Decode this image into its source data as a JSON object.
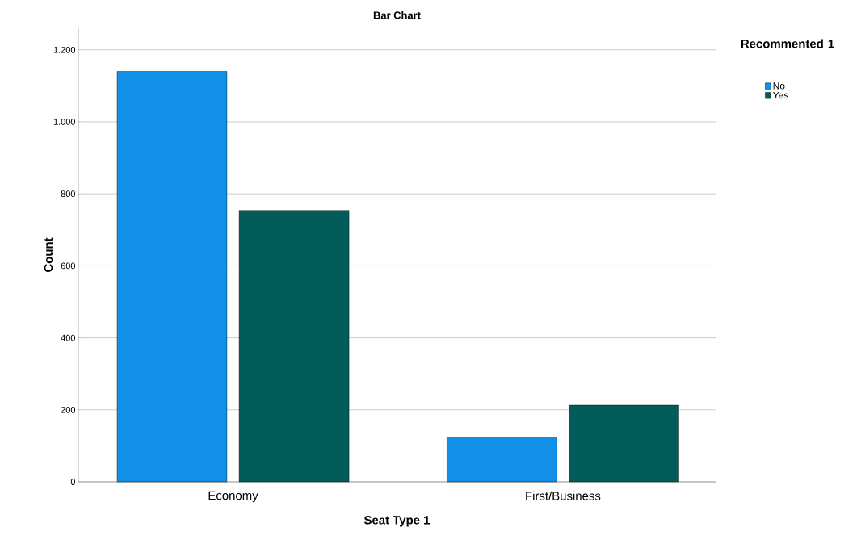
{
  "chart_data": {
    "type": "bar",
    "title": "Bar Chart",
    "xlabel": "Seat Type 1",
    "ylabel": "Count",
    "legend_title": "Recommented 1",
    "categories": [
      "Economy",
      "First/Business"
    ],
    "series": [
      {
        "name": "No",
        "color": "#1290e8",
        "values": [
          1140,
          123
        ]
      },
      {
        "name": "Yes",
        "color": "#025c5a",
        "values": [
          754,
          213
        ]
      }
    ],
    "ylim": [
      0,
      1260
    ],
    "yticks": [
      0,
      200,
      400,
      600,
      800,
      {
        "value": 1000,
        "label": "1.000"
      },
      {
        "value": 1200,
        "label": "1.200"
      }
    ],
    "grid": "y",
    "legend": "top right"
  }
}
